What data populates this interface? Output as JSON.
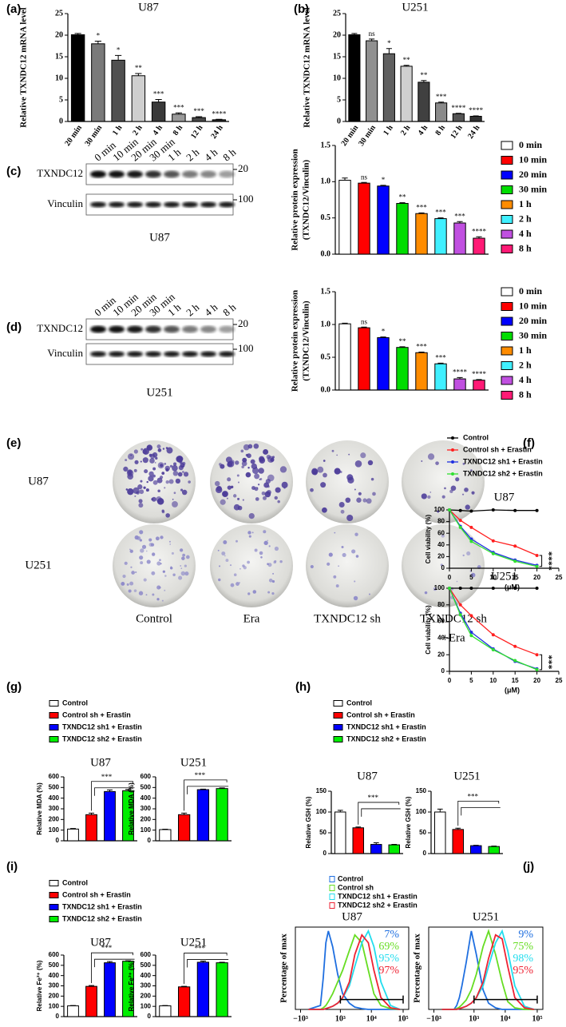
{
  "figure": {
    "panels": [
      "(a)",
      "(b)",
      "(c)",
      "(d)",
      "(e)",
      "(f)",
      "(g)",
      "(h)",
      "(i)",
      "(j)"
    ],
    "blots": [
      {
        "lanes": [
          "0 min",
          "10 min",
          "20 min",
          "30 min",
          "1 h",
          "2 h",
          "4 h",
          "8 h"
        ],
        "rows": [
          "TXNDC12",
          "Vinculin"
        ],
        "markers": [
          "20",
          "100"
        ],
        "cell": "U87"
      },
      {
        "lanes": [
          "0 min",
          "10 min",
          "20 min",
          "30 min",
          "1 h",
          "2 h",
          "4 h",
          "8 h"
        ],
        "rows": [
          "TXNDC12",
          "Vinculin"
        ],
        "markers": [
          "20",
          "100"
        ],
        "cell": "U251"
      }
    ],
    "colonies": {
      "rows": [
        "U87",
        "U251"
      ],
      "columns": [
        [
          "Control"
        ],
        [
          "Era"
        ],
        [
          "TXNDC12 sh"
        ],
        [
          "TXNDC12 sh",
          "+Era"
        ]
      ]
    }
  },
  "chart_data": [
    {
      "type": "bar",
      "title": "U87",
      "ylabel": [
        "Relative TXNDC12 mRNA level"
      ],
      "categories": [
        "20 min",
        "30 min",
        "1 h",
        "2 h",
        "4 h",
        "8 h",
        "12 h",
        "24 h"
      ],
      "values": [
        20.1,
        18,
        14.2,
        10.6,
        4.5,
        1.7,
        0.9,
        0.4
      ],
      "errors": [
        0.3,
        0.6,
        1.1,
        0.5,
        0.6,
        0.3,
        0.2,
        0.1
      ],
      "annotations": [
        null,
        "*",
        "*",
        "**",
        "***",
        "***",
        "***",
        "****"
      ],
      "colors": [
        "#000000",
        "#7a7a7a",
        "#505050",
        "#cfcfcf",
        "#3a3a3a",
        "#9a9a9a",
        "#4a4a4a",
        "#2a2a2a"
      ],
      "ylim": [
        0,
        25
      ],
      "yticks": [
        0,
        5,
        10,
        15,
        20,
        25
      ]
    },
    {
      "type": "bar",
      "title": "U251",
      "ylabel": [
        "Relative TXNDC12 mRNA level"
      ],
      "categories": [
        "20 min",
        "30 min",
        "1 h",
        "2 h",
        "4 h",
        "8 h",
        "12 h",
        "24 h"
      ],
      "values": [
        20.1,
        18.7,
        15.7,
        12.8,
        9.1,
        4.3,
        1.8,
        1.2
      ],
      "errors": [
        0.3,
        0.4,
        1.2,
        0.2,
        0.4,
        0.2,
        0.1,
        0.1
      ],
      "annotations": [
        null,
        "ns",
        "*",
        "**",
        "**",
        "***",
        "****",
        "****"
      ],
      "colors": [
        "#000000",
        "#909090",
        "#606060",
        "#cfcfcf",
        "#404040",
        "#8a8a8a",
        "#555555",
        "#333333"
      ],
      "ylim": [
        0,
        25
      ],
      "yticks": [
        0,
        5,
        10,
        15,
        20,
        25
      ]
    },
    {
      "type": "bar",
      "legend": "right",
      "ylabel": [
        "Relative protein expression",
        "(TXNDC12/Vinculin)"
      ],
      "categories": [
        "0 min",
        "10 min",
        "20 min",
        "30 min",
        "1 h",
        "2 h",
        "4 h",
        "8 h"
      ],
      "values": [
        1.02,
        0.98,
        0.94,
        0.7,
        0.56,
        0.49,
        0.43,
        0.22
      ],
      "errors": [
        0.03,
        0.01,
        0.01,
        0.01,
        0.01,
        0.01,
        0.02,
        0.02
      ],
      "annotations": [
        null,
        "ns",
        "*",
        "**",
        "***",
        "***",
        "***",
        "****"
      ],
      "colors": [
        "#ffffff",
        "#ff0000",
        "#0000ff",
        "#00dd00",
        "#ff8c00",
        "#40f0ff",
        "#c050e0",
        "#ff1a75"
      ],
      "ylim": [
        0,
        1.5
      ],
      "yticks": [
        {
          "value": 0,
          "label": "0.0"
        },
        0.5,
        {
          "value": 1,
          "label": "1.0"
        },
        1.5
      ]
    },
    {
      "type": "bar",
      "legend": "right",
      "ylabel": [
        "Relative protein expression",
        "(TXNDC12/Vinculin)"
      ],
      "categories": [
        "0 min",
        "10 min",
        "20 min",
        "30 min",
        "1 h",
        "2 h",
        "4 h",
        "8 h"
      ],
      "values": [
        1.01,
        0.95,
        0.8,
        0.65,
        0.57,
        0.4,
        0.17,
        0.15
      ],
      "errors": [
        0.01,
        0.01,
        0.01,
        0.01,
        0.01,
        0.01,
        0.02,
        0.01
      ],
      "annotations": [
        null,
        "ns",
        "*",
        "**",
        "***",
        "***",
        "****",
        "****"
      ],
      "colors": [
        "#ffffff",
        "#ff0000",
        "#0000ff",
        "#00dd00",
        "#ff8c00",
        "#40f0ff",
        "#c050e0",
        "#ff1a75"
      ],
      "ylim": [
        0,
        1.5
      ],
      "yticks": [
        {
          "value": 0,
          "label": "0.0"
        },
        0.5,
        {
          "value": 1,
          "label": "1.0"
        },
        1.5
      ]
    },
    {
      "type": "line",
      "title": "U87",
      "legend": "top",
      "ylabel": [
        "Cell viability (%)"
      ],
      "xlabel": "(μM)",
      "x": [
        0,
        2.5,
        5,
        10,
        15,
        20
      ],
      "series": [
        {
          "name": "Control",
          "color": "#000000",
          "values": [
            100,
            99,
            98,
            100,
            99,
            99
          ]
        },
        {
          "name": "Control sh + Erastin",
          "color": "#ff2020",
          "values": [
            100,
            82,
            70,
            47,
            38,
            22
          ]
        },
        {
          "name": "TXNDC12 sh1 + Erastin",
          "color": "#2030e0",
          "values": [
            100,
            72,
            50,
            27,
            14,
            5
          ]
        },
        {
          "name": "TXNDC12 sh2 + Erastin",
          "color": "#30e030",
          "values": [
            100,
            70,
            46,
            25,
            12,
            3
          ]
        }
      ],
      "significance": "****",
      "xlim": [
        0,
        25
      ],
      "xticks": [
        0,
        5,
        10,
        15,
        20,
        25
      ],
      "ylim": [
        0,
        100
      ],
      "yticks": [
        0,
        20,
        40,
        60,
        80,
        100
      ]
    },
    {
      "type": "line",
      "title": "U251",
      "ylabel": [
        "Cell viability (%)"
      ],
      "xlabel": "(μM)",
      "x": [
        0,
        2.5,
        5,
        10,
        15,
        20
      ],
      "series": [
        {
          "color": "#000000",
          "values": [
            100,
            100,
            100,
            100,
            100,
            100
          ]
        },
        {
          "color": "#ff2020",
          "values": [
            100,
            80,
            67,
            44,
            30,
            20
          ]
        },
        {
          "color": "#2030e0",
          "values": [
            100,
            70,
            47,
            27,
            12,
            3
          ]
        },
        {
          "color": "#30e030",
          "values": [
            100,
            68,
            43,
            26,
            13,
            2
          ]
        }
      ],
      "significance": "***",
      "xlim": [
        0,
        25
      ],
      "xticks": [
        0,
        5,
        10,
        15,
        20,
        25
      ],
      "ylim": [
        0,
        100
      ],
      "yticks": [
        0,
        20,
        40,
        60,
        80,
        100
      ]
    },
    {
      "type": "bar",
      "title": "U87",
      "legend": "top",
      "ylabel": [
        "Relative MDA (%)"
      ],
      "categories": [
        "Control",
        "Control sh + Erastin",
        "TXNDC12 sh1 + Erastin",
        "TXNDC12 sh2 + Erastin"
      ],
      "values": [
        110,
        245,
        462,
        470
      ],
      "errors": [
        5,
        15,
        15,
        12
      ],
      "colors": [
        "#ffffff",
        "#ff0000",
        "#0000ff",
        "#00ee00"
      ],
      "significance": "***",
      "ylim": [
        0,
        600
      ],
      "yticks": [
        0,
        100,
        200,
        300,
        400,
        500,
        600
      ]
    },
    {
      "type": "bar",
      "title": "U251",
      "ylabel": [
        "Relative MDA (%)"
      ],
      "values": [
        105,
        245,
        480,
        490
      ],
      "errors": [
        4,
        15,
        5,
        6
      ],
      "colors": [
        "#ffffff",
        "#ff0000",
        "#0000ff",
        "#00ee00"
      ],
      "significance": "***",
      "ylim": [
        0,
        600
      ],
      "yticks": [
        0,
        100,
        200,
        300,
        400,
        500,
        600
      ]
    },
    {
      "type": "bar",
      "title": "U87",
      "legend": "top",
      "ylabel": [
        "Relative GSH (%)"
      ],
      "categories": [
        "Control",
        "Control sh + Erastin",
        "TXNDC12 sh1 + Erastin",
        "TXNDC12 sh2 + Erastin"
      ],
      "values": [
        100,
        62,
        22,
        21
      ],
      "errors": [
        4,
        2,
        4,
        1
      ],
      "colors": [
        "#ffffff",
        "#ff0000",
        "#0000ff",
        "#00ee00"
      ],
      "significance": "***",
      "ylim": [
        0,
        150
      ],
      "yticks": [
        0,
        50,
        100,
        150
      ]
    },
    {
      "type": "bar",
      "title": "U251",
      "ylabel": [
        "Relative GSH (%)"
      ],
      "values": [
        100,
        58,
        19,
        17
      ],
      "errors": [
        7,
        3,
        1,
        1
      ],
      "colors": [
        "#ffffff",
        "#ff0000",
        "#0000ff",
        "#00ee00"
      ],
      "significance": "***",
      "ylim": [
        0,
        150
      ],
      "yticks": [
        0,
        50,
        100,
        150
      ]
    },
    {
      "type": "bar",
      "title": "U87",
      "legend": "top",
      "ylabel": [
        "Relative Fe²⁺ (%)"
      ],
      "categories": [
        "Control",
        "Control sh + Erastin",
        "TXNDC12 sh1 + Erastin",
        "TXNDC12 sh2 + Erastin"
      ],
      "values": [
        105,
        295,
        525,
        540
      ],
      "errors": [
        3,
        8,
        12,
        4
      ],
      "colors": [
        "#ffffff",
        "#ff0000",
        "#0000ff",
        "#00ee00"
      ],
      "significance": "***",
      "ylim": [
        0,
        600
      ],
      "yticks": [
        0,
        100,
        200,
        300,
        400,
        500,
        600
      ]
    },
    {
      "type": "bar",
      "title": "U251",
      "ylabel": [
        "Relative Fe²⁺ (%)"
      ],
      "values": [
        105,
        290,
        530,
        525
      ],
      "errors": [
        3,
        5,
        12,
        5
      ],
      "colors": [
        "#ffffff",
        "#ff0000",
        "#0000ff",
        "#00ee00"
      ],
      "significance": "***",
      "ylim": [
        0,
        600
      ],
      "yticks": [
        0,
        100,
        200,
        300,
        400,
        500,
        600
      ]
    },
    {
      "type": "flow",
      "title": "U87",
      "legend": "top",
      "ylabel": [
        "Percentage of max"
      ],
      "x": [
        -500,
        0,
        100,
        200,
        300,
        500,
        800,
        1200,
        2000,
        3000,
        5000,
        8000,
        12000,
        20000,
        40000,
        80000
      ],
      "series": [
        {
          "name": "Control",
          "color": "#1f6fe0",
          "values": [
            0,
            5,
            40,
            85,
            100,
            80,
            45,
            20,
            8,
            3,
            1,
            0,
            0,
            0,
            0,
            0
          ],
          "percent": 7,
          "percent_label": "7%"
        },
        {
          "name": "Control sh",
          "color": "#66dd22",
          "values": [
            0,
            0,
            2,
            5,
            10,
            20,
            35,
            50,
            75,
            95,
            85,
            50,
            20,
            5,
            1,
            0
          ],
          "percent": 69,
          "percent_label": "69%"
        },
        {
          "name": "TXNDC12 sh1 + Erastin",
          "color": "#22ddee",
          "values": [
            0,
            0,
            0,
            1,
            2,
            4,
            8,
            15,
            30,
            55,
            85,
            100,
            80,
            35,
            5,
            0
          ],
          "percent": 95,
          "percent_label": "95%"
        },
        {
          "name": "TXNDC12 sh2 + Erastin",
          "color": "#ee2233",
          "values": [
            0,
            0,
            0,
            1,
            2,
            4,
            8,
            15,
            35,
            70,
            95,
            85,
            50,
            15,
            2,
            0
          ],
          "percent": 97,
          "percent_label": "97%"
        }
      ],
      "gate": [
        1000,
        100000
      ],
      "xlim": [
        -1500,
        150000
      ],
      "xticks": [
        {
          "value": -1000,
          "label": "−10³"
        },
        {
          "value": 1000,
          "label": "10³"
        },
        {
          "value": 10000,
          "label": "10⁴"
        },
        {
          "value": 100000,
          "label": "10⁵"
        }
      ],
      "ylim": [
        0,
        105
      ]
    },
    {
      "type": "flow",
      "title": "U251",
      "ylabel": [
        "Percentage of max"
      ],
      "x": [
        -500,
        0,
        100,
        200,
        300,
        500,
        800,
        1200,
        2000,
        3000,
        5000,
        8000,
        12000,
        20000,
        40000,
        80000
      ],
      "series": [
        {
          "color": "#1f6fe0",
          "values": [
            0,
            0,
            5,
            15,
            30,
            60,
            100,
            70,
            25,
            8,
            2,
            0,
            0,
            0,
            0,
            0
          ],
          "percent": 9,
          "percent_label": "9%"
        },
        {
          "color": "#66dd22",
          "values": [
            0,
            0,
            1,
            3,
            6,
            12,
            25,
            45,
            80,
            100,
            70,
            35,
            10,
            2,
            0,
            0
          ],
          "percent": 75,
          "percent_label": "75%"
        },
        {
          "color": "#22ddee",
          "values": [
            0,
            0,
            0,
            1,
            2,
            4,
            8,
            15,
            30,
            55,
            85,
            100,
            75,
            30,
            4,
            0
          ],
          "percent": 98,
          "percent_label": "98%"
        },
        {
          "color": "#ee2233",
          "values": [
            0,
            0,
            0,
            1,
            2,
            4,
            8,
            15,
            35,
            65,
            95,
            90,
            55,
            15,
            2,
            0
          ],
          "percent": 95,
          "percent_label": "95%"
        }
      ],
      "gate": [
        1000,
        100000
      ],
      "xlim": [
        -1500,
        150000
      ],
      "xticks": [
        {
          "value": -1000,
          "label": "−10³"
        },
        {
          "value": 1000,
          "label": "10³"
        },
        {
          "value": 10000,
          "label": "10⁴"
        },
        {
          "value": 100000,
          "label": "10⁵"
        }
      ],
      "ylim": [
        0,
        105
      ]
    }
  ]
}
